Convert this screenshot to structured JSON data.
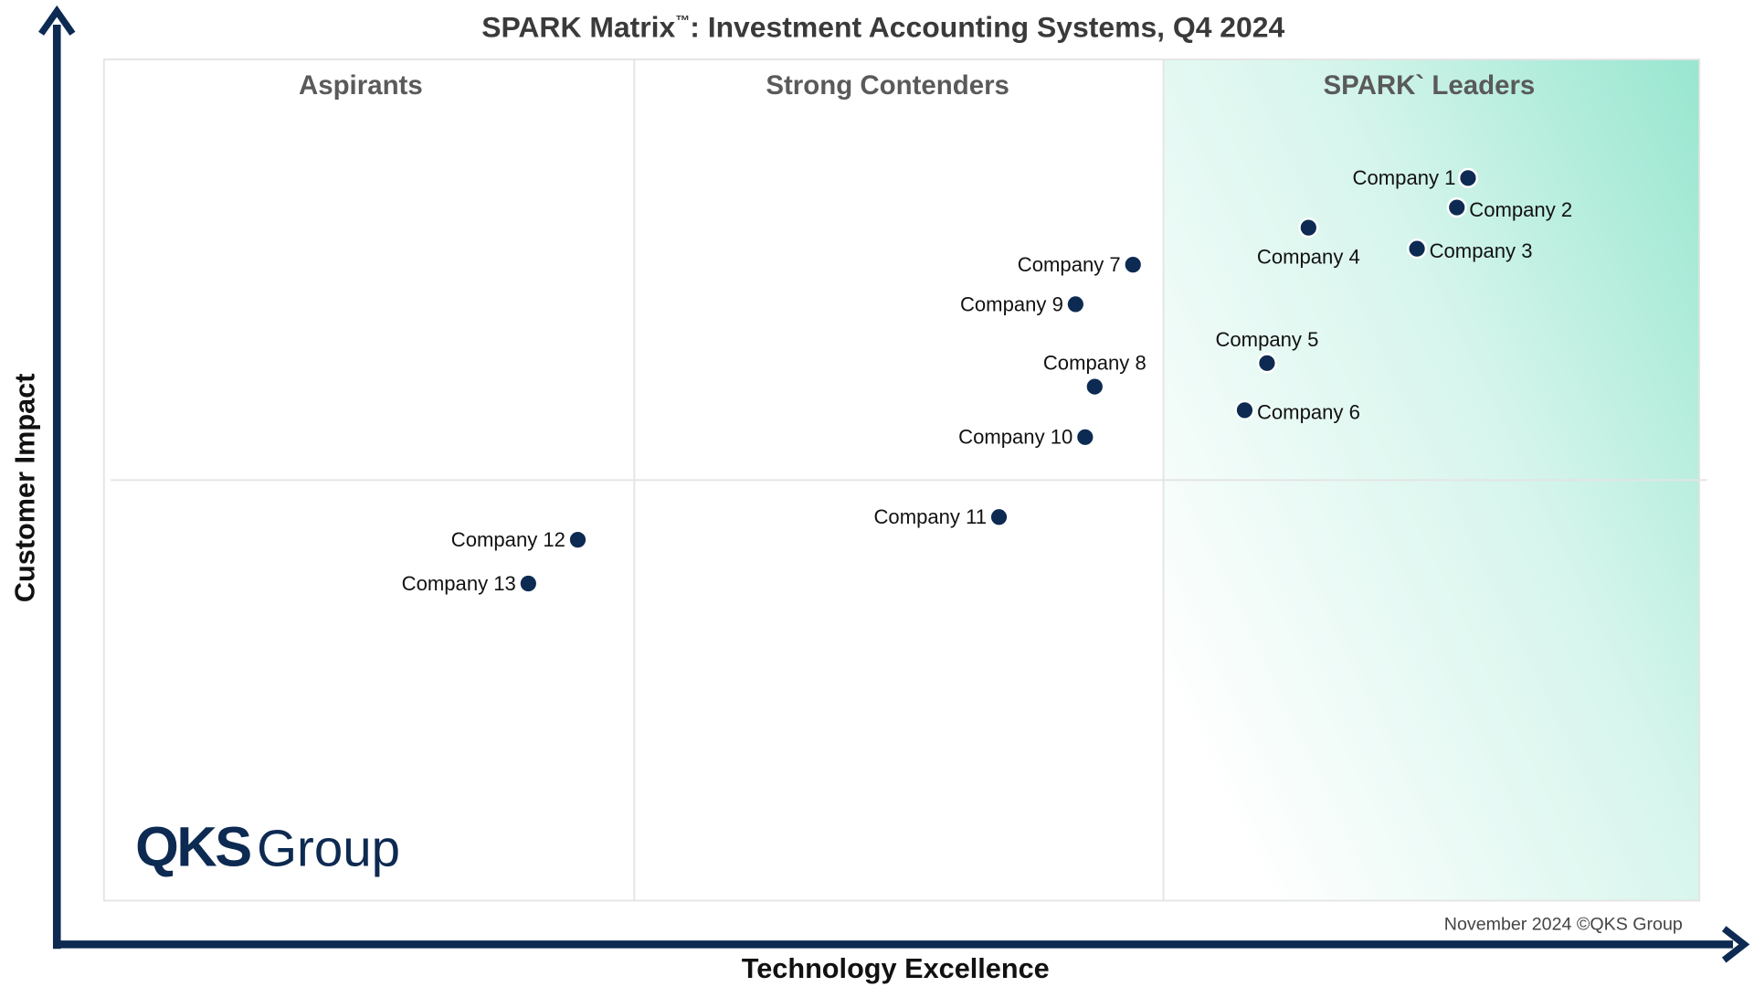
{
  "chart_data": {
    "type": "scatter",
    "title": "SPARK Matrix",
    "title_mark": "™",
    "title_rest": ": Investment Accounting Systems, Q4 2024",
    "xlabel": "Technology Excellence",
    "ylabel": "Customer Impact",
    "xlim": [
      0,
      100
    ],
    "ylim": [
      0,
      100
    ],
    "grid": false,
    "quadrants": [
      "Aspirants",
      "Strong Contenders",
      "SPARK` Leaders"
    ],
    "points": [
      {
        "label": "Company 1",
        "x": 85.5,
        "y": 85.9
      },
      {
        "label": "Company 2",
        "x": 84.8,
        "y": 82.4
      },
      {
        "label": "Company 3",
        "x": 82.3,
        "y": 77.5
      },
      {
        "label": "Company 4",
        "x": 75.5,
        "y": 80.0
      },
      {
        "label": "Company 5",
        "x": 72.9,
        "y": 63.9
      },
      {
        "label": "Company 6",
        "x": 71.5,
        "y": 58.3
      },
      {
        "label": "Company 7",
        "x": 64.5,
        "y": 75.6
      },
      {
        "label": "Company 8",
        "x": 62.1,
        "y": 61.1
      },
      {
        "label": "Company 9",
        "x": 60.9,
        "y": 70.9
      },
      {
        "label": "Company 10",
        "x": 61.5,
        "y": 55.1
      },
      {
        "label": "Company 11",
        "x": 56.1,
        "y": 45.6
      },
      {
        "label": "Company 12",
        "x": 29.7,
        "y": 42.9
      },
      {
        "label": "Company 13",
        "x": 26.6,
        "y": 37.7
      }
    ],
    "colors": {
      "point": "#0d2a52",
      "axis": "#0d2a52",
      "leaders_gradient": "#98e6cf"
    }
  },
  "logo": {
    "bold": "QKS",
    "regular": "Group"
  },
  "footer": "November 2024 ©QKS Group"
}
